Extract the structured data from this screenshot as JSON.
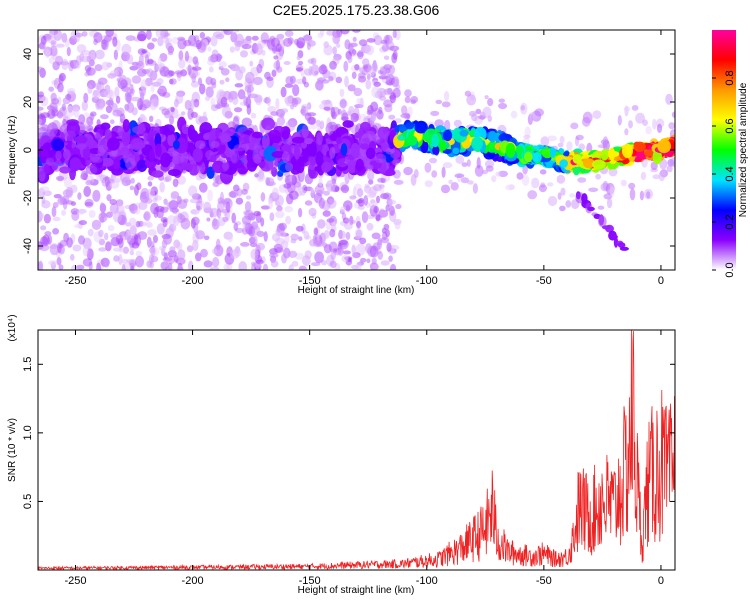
{
  "title": "C2E5.2025.175.23.38.G06",
  "chart_data": [
    {
      "type": "heatmap",
      "xlabel": "Height of straight line (km)",
      "ylabel": "Frequency (Hz)",
      "xlim": [
        -266,
        6
      ],
      "ylim": [
        -50,
        50
      ],
      "xticks": [
        -250,
        -200,
        -150,
        -100,
        -50,
        0
      ],
      "yticks": [
        -40,
        -20,
        0,
        20,
        40
      ],
      "colorbar": {
        "label": "Normalized spectral amplitude",
        "range": [
          0,
          1
        ],
        "ticks": [
          "0.0",
          "0.2",
          "0.4",
          "0.6",
          "0.8"
        ],
        "colormap": "rainbow",
        "colors": [
          "#ffffff",
          "#8a00ff",
          "#0000ff",
          "#00e5ff",
          "#00ff00",
          "#ffff00",
          "#ff9900",
          "#ff0000",
          "#ff00a0"
        ]
      },
      "ridge": {
        "x": [
          -266,
          -200,
          -150,
          -115,
          -110,
          -100,
          -90,
          -80,
          -70,
          -60,
          -50,
          -40,
          -30,
          -20,
          -10,
          0,
          6
        ],
        "y": [
          0,
          1,
          0,
          0,
          6,
          5,
          3,
          4,
          2,
          -2,
          -2,
          -5,
          -5,
          -3,
          -1,
          0,
          2
        ]
      },
      "grid": false
    },
    {
      "type": "line",
      "xlabel": "Height of straight line (km)",
      "ylabel": "SNR (10 * v/v)",
      "yscale_label": "(x10⁴)",
      "xlim": [
        -266,
        6
      ],
      "ylim": [
        0,
        1.75
      ],
      "xticks": [
        -250,
        -200,
        -150,
        -100,
        -50,
        0
      ],
      "yticks": [
        0.5,
        1.0,
        1.5
      ],
      "line_color": "#ee2222",
      "grid": false,
      "series": [
        {
          "x": [
            -266,
            -200,
            -150,
            -110,
            -95,
            -85,
            -80,
            -75,
            -72,
            -70,
            -65,
            -55,
            -50,
            -45,
            -40,
            -38,
            -35,
            -30,
            -25,
            -20,
            -15,
            -12,
            -10,
            -8,
            -6,
            -3,
            0,
            3,
            6
          ],
          "y": [
            0.02,
            0.03,
            0.04,
            0.07,
            0.12,
            0.25,
            0.35,
            0.45,
            0.7,
            0.35,
            0.2,
            0.15,
            0.18,
            0.12,
            0.15,
            0.3,
            0.7,
            0.6,
            0.8,
            0.7,
            1.1,
            1.75,
            0.9,
            0.3,
            0.9,
            1.1,
            1.2,
            1.0,
            1.2
          ]
        }
      ]
    }
  ]
}
